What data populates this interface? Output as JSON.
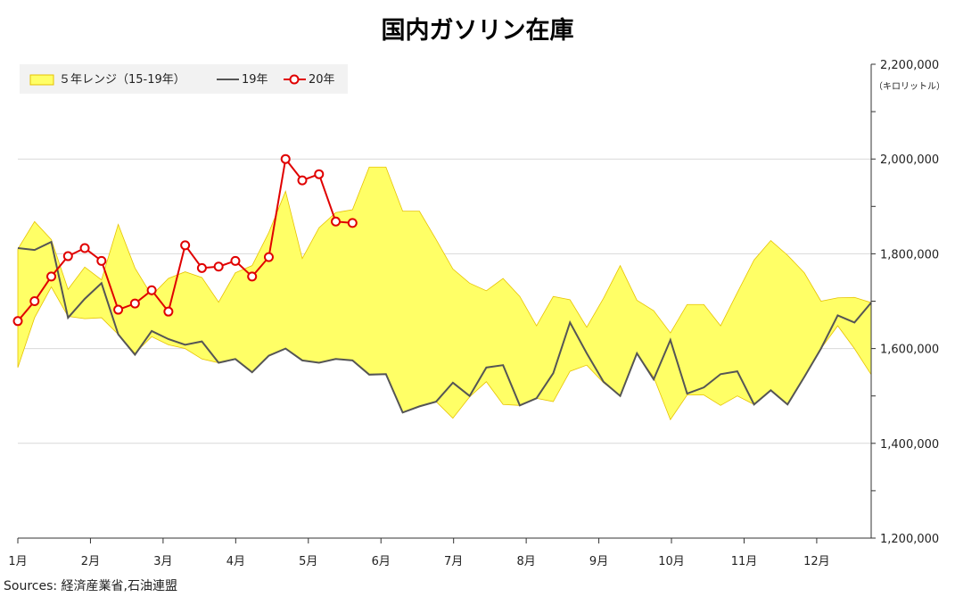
{
  "title": "国内ガソリン在庫",
  "unit": "（キロリットル）",
  "source": "Sources: 経済産業省,石油連盟",
  "colors": {
    "range_fill": "#ffff66",
    "range_edge": "#e6c200",
    "series_2019": "#555555",
    "series_2020": "#e00000",
    "grid": "#d9d9d9",
    "axis": "#333333",
    "legend_bg": "#f2f2f2"
  },
  "chart_data": {
    "type": "line",
    "legend_position": "top-left",
    "grid": true,
    "ylim": [
      1200000,
      2200000
    ],
    "yticks": [
      "1,200,000",
      "1,400,000",
      "1,600,000",
      "1,800,000",
      "2,000,000",
      "2,200,000"
    ],
    "ytick_values": [
      1200000,
      1400000,
      1600000,
      1800000,
      2000000,
      2200000
    ],
    "xticks": [
      "1月",
      "2月",
      "3月",
      "4月",
      "5月",
      "6月",
      "7月",
      "8月",
      "9月",
      "10月",
      "11月",
      "12月"
    ],
    "x_weeks": 52,
    "series": [
      {
        "name": "５年レンジ（15-19年）",
        "type": "range",
        "high": [
          1810000,
          1868000,
          1830000,
          1725000,
          1772000,
          1745000,
          1862000,
          1770000,
          1712000,
          1748000,
          1762000,
          1750000,
          1698000,
          1760000,
          1775000,
          1845000,
          1932000,
          1790000,
          1855000,
          1887000,
          1893000,
          1983000,
          1983000,
          1890000,
          1890000,
          1830000,
          1768000,
          1738000,
          1722000,
          1748000,
          1710000,
          1648000,
          1710000,
          1703000,
          1645000,
          1706000,
          1775000,
          1702000,
          1680000,
          1633000,
          1693000,
          1693000,
          1648000,
          1718000,
          1787000,
          1828000,
          1797000,
          1760000,
          1700000,
          1707000,
          1708000,
          1697000
        ],
        "low": [
          1560000,
          1665000,
          1730000,
          1668000,
          1663000,
          1665000,
          1630000,
          1590000,
          1625000,
          1608000,
          1600000,
          1578000,
          1570000,
          1578000,
          1550000,
          1585000,
          1600000,
          1575000,
          1570000,
          1578000,
          1575000,
          1545000,
          1546000,
          1465000,
          1478000,
          1488000,
          1453000,
          1498000,
          1530000,
          1482000,
          1480000,
          1495000,
          1488000,
          1552000,
          1565000,
          1528000,
          1500000,
          1588000,
          1540000,
          1450000,
          1502000,
          1502000,
          1480000,
          1500000,
          1482000,
          1512000,
          1482000,
          1540000,
          1600000,
          1648000,
          1600000,
          1545000
        ]
      },
      {
        "name": "19年",
        "values": [
          1812000,
          1808000,
          1825000,
          1665000,
          1705000,
          1738000,
          1630000,
          1587000,
          1637000,
          1620000,
          1608000,
          1615000,
          1570000,
          1578000,
          1550000,
          1585000,
          1600000,
          1575000,
          1570000,
          1578000,
          1575000,
          1545000,
          1546000,
          1465000,
          1478000,
          1488000,
          1528000,
          1500000,
          1560000,
          1565000,
          1480000,
          1495000,
          1548000,
          1655000,
          1590000,
          1530000,
          1500000,
          1590000,
          1535000,
          1618000,
          1505000,
          1518000,
          1546000,
          1552000,
          1482000,
          1512000,
          1482000,
          1540000,
          1600000,
          1670000,
          1655000,
          1697000
        ]
      },
      {
        "name": "20年",
        "values": [
          1658000,
          1700000,
          1752000,
          1795000,
          1812000,
          1785000,
          1682000,
          1695000,
          1723000,
          1678000,
          1818000,
          1770000,
          1773000,
          1785000,
          1752000,
          1793000,
          2000000,
          1955000,
          1968000,
          1868000,
          1865000
        ]
      }
    ]
  }
}
